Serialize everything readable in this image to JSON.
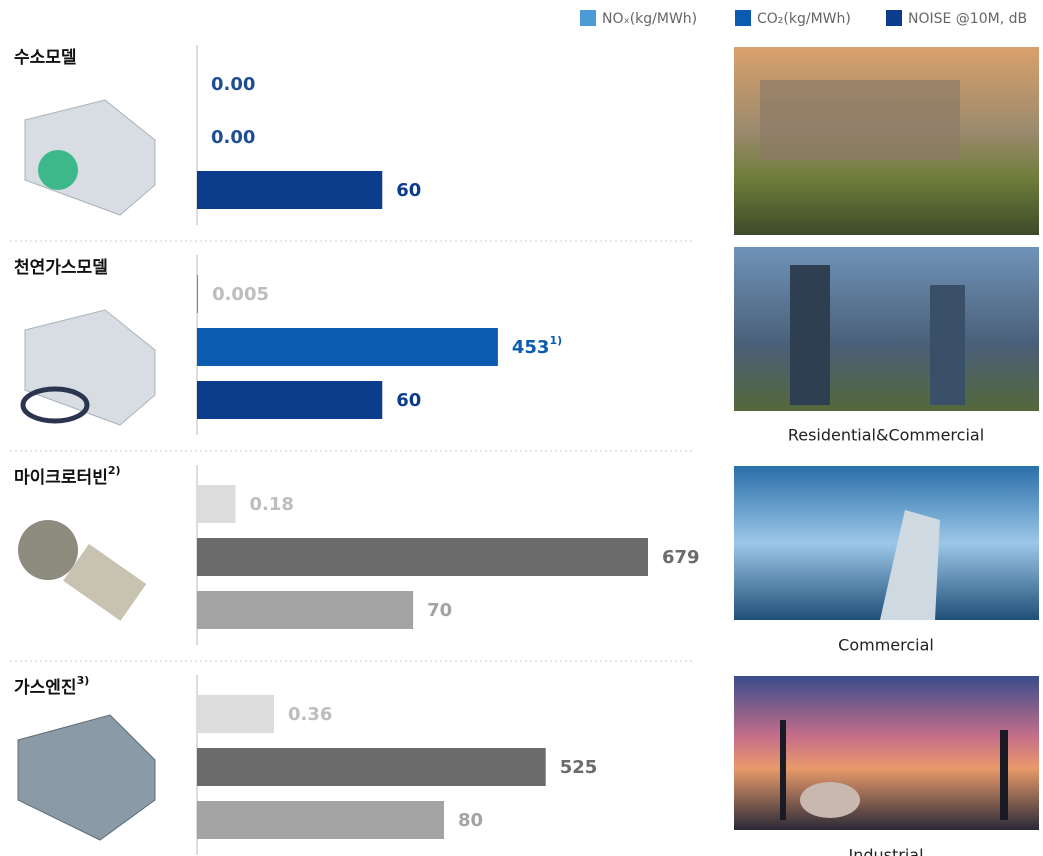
{
  "chart_data": {
    "type": "bar",
    "categories": [
      "수소모델",
      "천연가스모델",
      "마이크로터빈",
      "가스엔진"
    ],
    "category_notes": [
      null,
      null,
      "2)",
      "3)"
    ],
    "captions": [
      null,
      "Residential&Commercial",
      "Commercial",
      "Industrial"
    ],
    "series": [
      {
        "name": "NOₓ(kg/MWh)",
        "color": "#4a9bd6",
        "values": [
          0,
          0.005,
          0.18,
          0.36
        ],
        "value_labels": [
          "0.00",
          "0.005",
          "0.18",
          "0.36"
        ],
        "bar_colors": [
          "#4a9bd6",
          "#4a9bd6",
          "#dcdcdc",
          "#dcdcdc"
        ],
        "label_colors": [
          "#1d4f91",
          "#bdbdbd",
          "#bdbdbd",
          "#bdbdbd"
        ]
      },
      {
        "name": "CO₂(kg/MWh)",
        "color": "#0b5cb0",
        "values": [
          0,
          453,
          679,
          525
        ],
        "value_labels": [
          "0.00",
          "453",
          "679",
          "525"
        ],
        "value_notes": [
          null,
          "1)",
          null,
          null
        ],
        "bar_colors": [
          "#0b5cb0",
          "#0b5cb0",
          "#6b6b6b",
          "#6b6b6b"
        ],
        "label_colors": [
          "#1d4f91",
          "#0b5cb0",
          "#6b6b6b",
          "#6b6b6b"
        ]
      },
      {
        "name": "NOISE @10M, dB",
        "color": "#0b3d8c",
        "values": [
          60,
          60,
          70,
          80
        ],
        "value_labels": [
          "60",
          "60",
          "70",
          "80"
        ],
        "bar_colors": [
          "#0b3d8c",
          "#0b3d8c",
          "#a3a3a3",
          "#a3a3a3"
        ],
        "label_colors": [
          "#0b3d8c",
          "#0b3d8c",
          "#a3a3a3",
          "#a3a3a3"
        ]
      }
    ]
  }
}
